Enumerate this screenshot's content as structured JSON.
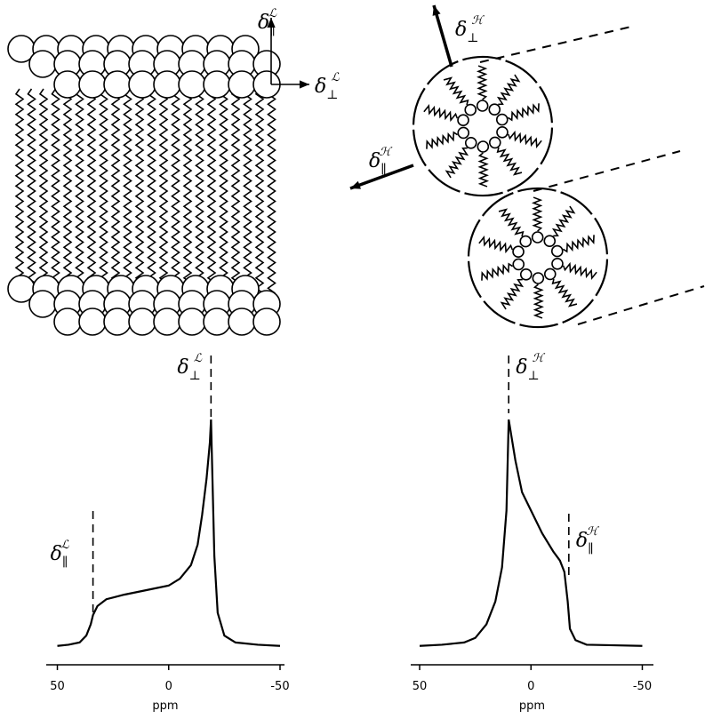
{
  "chart_data": [
    {
      "type": "line",
      "xlabel": "ppm",
      "xlim": [
        55,
        -52
      ],
      "xticks": [
        50,
        0,
        -50
      ],
      "ylim": [
        0,
        100
      ],
      "color": "#000000",
      "x": [
        50,
        45,
        40,
        37,
        35,
        34,
        32,
        28,
        20,
        10,
        0,
        -5,
        -10,
        -13,
        -15,
        -17,
        -18.5,
        -19,
        -19.5,
        -20.5,
        -22,
        -25,
        -30,
        -40,
        -50
      ],
      "values": [
        0.5,
        1,
        2,
        5,
        10,
        14,
        18,
        21,
        23,
        25,
        27,
        30,
        36,
        45,
        58,
        74,
        90,
        100,
        80,
        40,
        15,
        5,
        2,
        1,
        0.5
      ],
      "annotations": [
        {
          "base": "δ",
          "sub": "⊥",
          "sup": "ℒ",
          "x": -19
        },
        {
          "base": "δ",
          "sub": "∥",
          "sup": "ℒ",
          "x": 34
        }
      ]
    },
    {
      "type": "line",
      "xlabel": "ppm",
      "xlim": [
        54,
        -55
      ],
      "xticks": [
        50,
        0,
        -50
      ],
      "ylim": [
        0,
        100
      ],
      "color": "#000000",
      "x": [
        50,
        40,
        30,
        25,
        20,
        16,
        13,
        11,
        10,
        7,
        4,
        0,
        -5,
        -10,
        -13,
        -15,
        -16.5,
        -17.5,
        -20,
        -25,
        -35,
        -50
      ],
      "values": [
        0.5,
        1,
        2,
        4,
        10,
        20,
        35,
        60,
        100,
        82,
        68,
        60,
        50,
        42,
        38,
        33,
        20,
        8,
        3,
        1,
        0.8,
        0.5
      ],
      "annotations": [
        {
          "base": "δ",
          "sub": "⊥",
          "sup": "ℋ",
          "x": 10
        },
        {
          "base": "δ",
          "sub": "∥",
          "sup": "ℋ",
          "x": -17
        }
      ]
    }
  ],
  "diagram": {
    "labels": [
      {
        "base": "δ",
        "sub": "∥",
        "sup": "ℒ"
      },
      {
        "base": "δ",
        "sub": "⊥",
        "sup": "ℒ"
      },
      {
        "base": "δ",
        "sub": "⊥",
        "sup": "ℋ"
      },
      {
        "base": "δ",
        "sub": "∥",
        "sup": "ℋ"
      }
    ]
  }
}
